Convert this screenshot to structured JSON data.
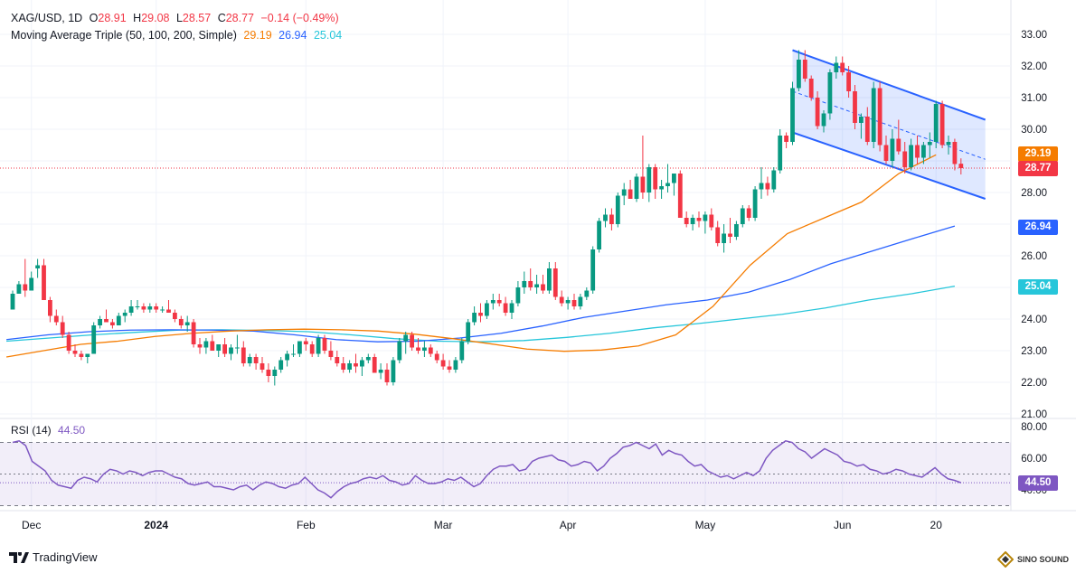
{
  "header": {
    "symbol": "XAG/USD, 1D",
    "open_label": "O",
    "open": "28.91",
    "high_label": "H",
    "high": "29.08",
    "low_label": "L",
    "low": "28.57",
    "close_label": "C",
    "close": "28.77",
    "change": "−0.14 (−0.49%)",
    "ma_label": "Moving Average Triple (50, 100, 200, Simple)",
    "ma50": "29.19",
    "ma100": "26.94",
    "ma200": "25.04",
    "rsi_label": "RSI (14)",
    "rsi": "44.50"
  },
  "colors": {
    "up": "#089981",
    "down": "#f23645",
    "ma50": "#f57c00",
    "ma100": "#2962ff",
    "ma200": "#26c6da",
    "rsi": "#7e57c2",
    "channel": "#2962ff",
    "last": "#f23645"
  },
  "price_labels": {
    "ma50": "29.19",
    "last": "28.77",
    "ma100": "26.94",
    "ma200": "25.04",
    "rsi": "44.50"
  },
  "brand": "TradingView",
  "watermark": "SINO SOUND",
  "chart_data": [
    {
      "type": "candlestick",
      "title": "XAG/USD, 1D",
      "y_ticks": [
        "33.00",
        "32.00",
        "31.00",
        "30.00",
        "29.00",
        "28.00",
        "27.00",
        "26.00",
        "25.00",
        "24.00",
        "23.00",
        "22.00",
        "21.00"
      ],
      "ylim": [
        21,
        33
      ],
      "x_labels": [
        "Dec",
        "2024",
        "Feb",
        "Mar",
        "Apr",
        "May",
        "Jun",
        "20"
      ],
      "ohlc": [
        [
          24.3,
          24.9,
          24.4,
          24.8
        ],
        [
          24.8,
          25.2,
          24.8,
          25.1
        ],
        [
          25.1,
          25.9,
          24.7,
          24.9
        ],
        [
          24.9,
          25.5,
          24.9,
          25.3
        ],
        [
          25.6,
          25.9,
          25.3,
          25.7
        ],
        [
          25.7,
          25.9,
          24.6,
          24.6
        ],
        [
          24.6,
          24.7,
          23.9,
          24.1
        ],
        [
          24.1,
          24.3,
          23.8,
          23.9
        ],
        [
          23.9,
          24.1,
          23.4,
          23.5
        ],
        [
          23.5,
          23.6,
          22.9,
          23.0
        ],
        [
          23.0,
          23.2,
          22.8,
          22.9
        ],
        [
          22.9,
          23.0,
          22.7,
          22.8
        ],
        [
          22.8,
          22.9,
          22.6,
          22.9
        ],
        [
          22.9,
          23.9,
          22.9,
          23.8
        ],
        [
          23.8,
          24.1,
          23.7,
          24.0
        ],
        [
          24.0,
          24.3,
          23.9,
          23.9
        ],
        [
          23.9,
          24.0,
          23.7,
          23.8
        ],
        [
          23.8,
          24.2,
          23.8,
          24.1
        ],
        [
          24.1,
          24.3,
          23.9,
          24.2
        ],
        [
          24.2,
          24.6,
          24.1,
          24.4
        ],
        [
          24.4,
          24.6,
          24.3,
          24.4
        ],
        [
          24.4,
          24.5,
          24.2,
          24.3
        ],
        [
          24.3,
          24.5,
          24.2,
          24.4
        ],
        [
          24.4,
          24.5,
          24.2,
          24.3
        ],
        [
          24.3,
          24.4,
          24.2,
          24.3
        ],
        [
          24.3,
          24.6,
          24.2,
          24.2
        ],
        [
          24.2,
          24.3,
          23.9,
          24.0
        ],
        [
          24.0,
          24.1,
          23.7,
          23.8
        ],
        [
          23.8,
          24.1,
          23.6,
          23.9
        ],
        [
          23.9,
          24.0,
          23.1,
          23.2
        ],
        [
          23.2,
          23.4,
          22.9,
          23.1
        ],
        [
          23.1,
          23.4,
          22.9,
          23.3
        ],
        [
          23.3,
          23.5,
          23.0,
          23.0
        ],
        [
          23.0,
          23.2,
          22.8,
          23.2
        ],
        [
          23.2,
          23.4,
          22.8,
          22.9
        ],
        [
          22.9,
          23.2,
          22.7,
          23.1
        ],
        [
          23.1,
          23.5,
          22.9,
          23.1
        ],
        [
          23.1,
          23.3,
          22.5,
          22.6
        ],
        [
          22.6,
          22.9,
          22.5,
          22.8
        ],
        [
          22.8,
          22.9,
          22.4,
          22.6
        ],
        [
          22.6,
          22.8,
          22.3,
          22.4
        ],
        [
          22.4,
          22.6,
          22.0,
          22.2
        ],
        [
          22.2,
          22.5,
          21.9,
          22.4
        ],
        [
          22.4,
          22.8,
          22.3,
          22.7
        ],
        [
          22.7,
          23.0,
          22.5,
          22.9
        ],
        [
          22.9,
          23.2,
          22.8,
          22.9
        ],
        [
          22.9,
          23.3,
          22.8,
          23.3
        ],
        [
          23.3,
          23.4,
          23.0,
          23.2
        ],
        [
          23.2,
          23.3,
          22.8,
          22.9
        ],
        [
          22.9,
          23.5,
          22.8,
          23.4
        ],
        [
          23.4,
          23.5,
          22.9,
          23.0
        ],
        [
          23.0,
          23.3,
          22.7,
          22.8
        ],
        [
          22.8,
          23.0,
          22.5,
          22.6
        ],
        [
          22.6,
          22.8,
          22.3,
          22.4
        ],
        [
          22.4,
          22.7,
          22.3,
          22.6
        ],
        [
          22.6,
          22.9,
          22.3,
          22.5
        ],
        [
          22.5,
          22.8,
          22.2,
          22.7
        ],
        [
          22.7,
          22.9,
          22.6,
          22.8
        ],
        [
          22.8,
          22.9,
          22.3,
          22.3
        ],
        [
          22.3,
          22.6,
          22.1,
          22.4
        ],
        [
          22.4,
          22.6,
          21.9,
          22.0
        ],
        [
          22.0,
          22.8,
          21.9,
          22.7
        ],
        [
          22.7,
          23.4,
          22.6,
          23.3
        ],
        [
          23.3,
          23.6,
          22.9,
          23.5
        ],
        [
          23.5,
          23.6,
          23.0,
          23.1
        ],
        [
          23.1,
          23.4,
          22.9,
          23.0
        ],
        [
          23.0,
          23.3,
          22.8,
          23.1
        ],
        [
          23.1,
          23.2,
          22.8,
          22.9
        ],
        [
          22.9,
          23.0,
          22.6,
          22.7
        ],
        [
          22.7,
          22.9,
          22.4,
          22.5
        ],
        [
          22.5,
          22.7,
          22.3,
          22.4
        ],
        [
          22.4,
          22.8,
          22.3,
          22.7
        ],
        [
          22.7,
          23.4,
          22.6,
          23.3
        ],
        [
          23.3,
          24.0,
          23.2,
          23.9
        ],
        [
          23.9,
          24.4,
          23.8,
          24.2
        ],
        [
          24.2,
          24.5,
          23.9,
          24.1
        ],
        [
          24.1,
          24.6,
          24.0,
          24.5
        ],
        [
          24.5,
          24.8,
          24.3,
          24.6
        ],
        [
          24.6,
          24.8,
          24.4,
          24.5
        ],
        [
          24.5,
          24.7,
          24.1,
          24.2
        ],
        [
          24.2,
          24.6,
          24.0,
          24.5
        ],
        [
          24.5,
          25.2,
          24.4,
          25.0
        ],
        [
          25.0,
          25.5,
          24.8,
          25.2
        ],
        [
          25.2,
          25.6,
          24.9,
          25.0
        ],
        [
          25.0,
          25.4,
          24.8,
          25.1
        ],
        [
          25.1,
          25.4,
          24.8,
          24.9
        ],
        [
          24.9,
          25.8,
          24.8,
          25.6
        ],
        [
          25.6,
          25.8,
          24.6,
          24.7
        ],
        [
          24.7,
          24.9,
          24.4,
          24.5
        ],
        [
          24.5,
          24.7,
          24.3,
          24.6
        ],
        [
          24.6,
          24.8,
          24.3,
          24.4
        ],
        [
          24.4,
          24.8,
          24.3,
          24.7
        ],
        [
          24.7,
          25.0,
          24.6,
          24.9
        ],
        [
          24.9,
          26.3,
          24.8,
          26.2
        ],
        [
          26.2,
          27.2,
          26.1,
          27.1
        ],
        [
          27.1,
          27.5,
          26.9,
          27.3
        ],
        [
          27.3,
          27.5,
          26.8,
          27.0
        ],
        [
          27.0,
          28.0,
          26.9,
          27.9
        ],
        [
          27.9,
          28.3,
          27.6,
          28.1
        ],
        [
          28.1,
          28.4,
          27.8,
          27.8
        ],
        [
          27.8,
          28.6,
          27.7,
          28.5
        ],
        [
          28.5,
          29.8,
          27.8,
          28.0
        ],
        [
          28.0,
          28.9,
          27.7,
          28.8
        ],
        [
          28.8,
          28.9,
          27.8,
          28.1
        ],
        [
          28.1,
          28.4,
          27.8,
          28.2
        ],
        [
          28.2,
          28.9,
          28.0,
          28.3
        ],
        [
          28.3,
          28.6,
          27.9,
          28.6
        ],
        [
          28.6,
          28.7,
          27.2,
          27.2
        ],
        [
          27.2,
          27.4,
          26.9,
          27.0
        ],
        [
          27.0,
          27.3,
          26.8,
          27.2
        ],
        [
          27.2,
          27.4,
          26.9,
          27.1
        ],
        [
          27.1,
          27.4,
          26.7,
          27.3
        ],
        [
          27.3,
          27.5,
          26.8,
          26.9
        ],
        [
          26.9,
          27.1,
          26.3,
          26.4
        ],
        [
          26.4,
          27.0,
          26.1,
          26.7
        ],
        [
          26.7,
          27.2,
          26.4,
          26.6
        ],
        [
          26.6,
          27.1,
          26.5,
          27.0
        ],
        [
          27.0,
          27.6,
          26.9,
          27.5
        ],
        [
          27.5,
          27.6,
          27.1,
          27.2
        ],
        [
          27.2,
          28.2,
          27.1,
          28.1
        ],
        [
          28.1,
          28.8,
          27.8,
          28.3
        ],
        [
          28.3,
          28.5,
          27.9,
          28.1
        ],
        [
          28.1,
          28.8,
          28.0,
          28.7
        ],
        [
          28.7,
          30.0,
          28.6,
          29.8
        ],
        [
          29.8,
          29.9,
          29.4,
          29.6
        ],
        [
          29.6,
          31.5,
          29.5,
          31.3
        ],
        [
          31.3,
          32.5,
          31.2,
          32.2
        ],
        [
          32.2,
          32.5,
          31.5,
          31.6
        ],
        [
          31.6,
          31.7,
          30.9,
          31.0
        ],
        [
          31.0,
          31.2,
          30.0,
          30.1
        ],
        [
          30.1,
          30.6,
          29.9,
          30.5
        ],
        [
          30.5,
          31.9,
          30.3,
          31.8
        ],
        [
          31.8,
          32.3,
          31.6,
          32.1
        ],
        [
          32.1,
          32.3,
          31.7,
          31.8
        ],
        [
          31.8,
          32.0,
          31.0,
          31.2
        ],
        [
          31.2,
          31.4,
          30.0,
          30.2
        ],
        [
          30.2,
          30.5,
          29.7,
          30.4
        ],
        [
          30.4,
          30.7,
          29.5,
          29.6
        ],
        [
          29.6,
          31.5,
          29.4,
          31.3
        ],
        [
          31.3,
          31.5,
          29.3,
          29.5
        ],
        [
          29.5,
          29.8,
          28.9,
          29.0
        ],
        [
          29.0,
          30.0,
          28.8,
          29.7
        ],
        [
          29.7,
          30.3,
          29.2,
          29.3
        ],
        [
          29.3,
          29.6,
          28.6,
          28.8
        ],
        [
          28.8,
          29.7,
          28.7,
          29.5
        ],
        [
          29.5,
          29.8,
          28.9,
          29.1
        ],
        [
          29.1,
          29.6,
          28.9,
          29.5
        ],
        [
          29.5,
          29.9,
          29.1,
          29.6
        ],
        [
          29.6,
          30.9,
          29.4,
          30.8
        ],
        [
          30.8,
          30.9,
          29.4,
          29.5
        ],
        [
          29.5,
          29.8,
          29.2,
          29.6
        ],
        [
          29.6,
          29.7,
          28.7,
          28.9
        ],
        [
          28.91,
          29.08,
          28.57,
          28.77
        ]
      ],
      "ma50": [
        22.8,
        23.0,
        23.2,
        23.3,
        23.45,
        23.55,
        23.62,
        23.66,
        23.68,
        23.66,
        23.62,
        23.52,
        23.38,
        23.22,
        23.05,
        22.98,
        23.02,
        23.15,
        23.5,
        24.4,
        25.7,
        26.7,
        27.2,
        27.7,
        28.6,
        29.19
      ],
      "ma100": [
        23.35,
        23.5,
        23.6,
        23.65,
        23.66,
        23.65,
        23.62,
        23.5,
        23.35,
        23.28,
        23.3,
        23.4,
        23.55,
        23.78,
        24.05,
        24.25,
        24.45,
        24.6,
        24.85,
        25.25,
        25.75,
        26.15,
        26.55,
        26.94
      ],
      "ma200": [
        23.3,
        23.4,
        23.5,
        23.58,
        23.65,
        23.66,
        23.64,
        23.6,
        23.5,
        23.38,
        23.3,
        23.28,
        23.32,
        23.42,
        23.55,
        23.72,
        23.85,
        24.0,
        24.15,
        24.35,
        24.6,
        24.8,
        25.04
      ],
      "channel": {
        "upper": [
          [
            32.5,
            31.7
          ],
          [
            30.3,
            30.3
          ]
        ],
        "lower": [
          [
            29.9,
            27.8
          ]
        ]
      },
      "rsi": {
        "label": "RSI (14)",
        "value": "44.50",
        "y_ticks": [
          "80.00",
          "60.00",
          "40.00"
        ],
        "levels": [
          70,
          30
        ],
        "values": [
          70,
          71,
          68,
          58,
          55,
          52,
          46,
          43,
          42,
          41,
          46,
          48,
          47,
          45,
          50,
          53,
          52,
          50,
          52,
          51,
          49,
          51,
          52,
          52,
          50,
          48,
          47,
          44,
          43,
          44,
          45,
          42,
          42,
          41,
          40,
          42,
          43,
          40,
          43,
          45,
          44,
          42,
          41,
          43,
          44,
          48,
          44,
          40,
          38,
          35,
          39,
          42,
          44,
          45,
          47,
          48,
          47,
          49,
          46,
          45,
          43,
          44,
          49,
          46,
          44,
          44,
          45,
          47,
          46,
          48,
          45,
          42,
          44,
          49,
          53,
          55,
          55,
          56,
          52,
          53,
          58,
          60,
          61,
          62,
          59,
          58,
          55,
          56,
          58,
          57,
          52,
          55,
          60,
          63,
          67,
          68,
          70,
          68,
          66,
          69,
          62,
          65,
          63,
          62,
          58,
          55,
          56,
          52,
          50,
          48,
          49,
          47,
          49,
          51,
          49,
          52,
          60,
          65,
          68,
          71,
          70,
          66,
          64,
          60,
          63,
          66,
          64,
          62,
          58,
          57,
          55,
          56,
          53,
          52,
          50,
          51,
          53,
          52,
          50,
          49,
          48,
          51,
          54,
          50,
          47,
          46,
          44.5
        ]
      }
    }
  ]
}
